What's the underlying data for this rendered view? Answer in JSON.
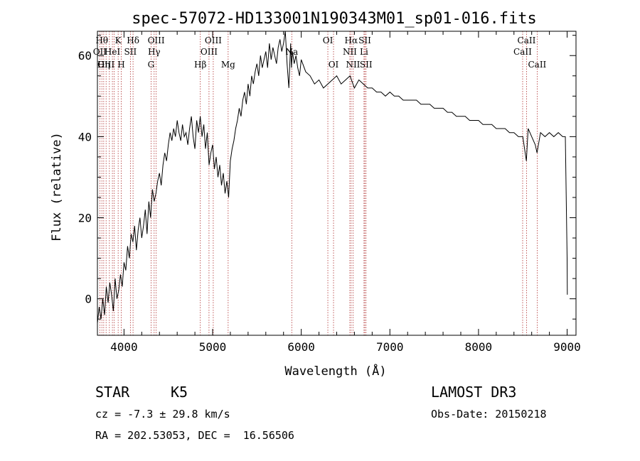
{
  "chart_data": {
    "type": "line",
    "title": "spec-57072-HD133001N190343M01_sp01-016.fits",
    "xlabel": "Wavelength (Å)",
    "ylabel": "Flux (relative)",
    "xlim": [
      3700,
      9100
    ],
    "ylim": [
      -9,
      66
    ],
    "xticks": [
      4000,
      5000,
      6000,
      7000,
      8000,
      9000
    ],
    "yticks": [
      0,
      20,
      40,
      60
    ],
    "grid": false,
    "series": [
      {
        "x": [
          3700,
          3720,
          3740,
          3760,
          3780,
          3800,
          3820,
          3840,
          3860,
          3880,
          3900,
          3920,
          3940,
          3960,
          3980,
          4000,
          4020,
          4040,
          4060,
          4080,
          4100,
          4120,
          4140,
          4160,
          4180,
          4200,
          4220,
          4240,
          4260,
          4280,
          4300,
          4320,
          4340,
          4360,
          4380,
          4400,
          4420,
          4440,
          4460,
          4480,
          4500,
          4520,
          4540,
          4560,
          4580,
          4600,
          4620,
          4640,
          4660,
          4680,
          4700,
          4720,
          4740,
          4760,
          4780,
          4800,
          4820,
          4840,
          4860,
          4880,
          4900,
          4920,
          4940,
          4960,
          4980,
          5000,
          5020,
          5040,
          5060,
          5080,
          5100,
          5120,
          5140,
          5160,
          5180,
          5200,
          5220,
          5240,
          5260,
          5280,
          5300,
          5320,
          5340,
          5360,
          5380,
          5400,
          5420,
          5440,
          5460,
          5480,
          5500,
          5520,
          5540,
          5560,
          5580,
          5600,
          5620,
          5640,
          5660,
          5680,
          5700,
          5720,
          5740,
          5760,
          5780,
          5800,
          5820,
          5840,
          5860,
          5880,
          5890,
          5900,
          5920,
          5940,
          5960,
          5980,
          6000,
          6050,
          6100,
          6150,
          6200,
          6250,
          6300,
          6350,
          6400,
          6450,
          6500,
          6550,
          6600,
          6650,
          6700,
          6750,
          6800,
          6850,
          6900,
          6950,
          7000,
          7050,
          7100,
          7150,
          7200,
          7250,
          7300,
          7350,
          7400,
          7450,
          7500,
          7550,
          7600,
          7650,
          7700,
          7750,
          7800,
          7850,
          7900,
          7950,
          8000,
          8050,
          8100,
          8150,
          8200,
          8250,
          8300,
          8350,
          8400,
          8450,
          8500,
          8540,
          8560,
          8600,
          8640,
          8660,
          8700,
          8750,
          8800,
          8850,
          8900,
          8950,
          8980,
          9000,
          9002
        ],
        "y": [
          -6,
          -2,
          -5,
          0,
          -4,
          3,
          -1,
          4,
          1,
          -3,
          5,
          0,
          2,
          6,
          3,
          9,
          7,
          13,
          10,
          16,
          14,
          18,
          12,
          17,
          20,
          15,
          18,
          22,
          16,
          24,
          20,
          27,
          24,
          26,
          29,
          31,
          28,
          33,
          36,
          34,
          38,
          41,
          39,
          42,
          40,
          44,
          41,
          39,
          43,
          40,
          41,
          38,
          42,
          45,
          40,
          37,
          44,
          41,
          45,
          40,
          43,
          37,
          41,
          33,
          36,
          38,
          32,
          35,
          30,
          33,
          28,
          31,
          26,
          29,
          25,
          34,
          37,
          39,
          42,
          44,
          47,
          45,
          49,
          51,
          48,
          53,
          50,
          55,
          53,
          56,
          58,
          55,
          60,
          57,
          59,
          61,
          57,
          63,
          59,
          62,
          60,
          58,
          62,
          64,
          61,
          63,
          66,
          58,
          52,
          63,
          57,
          61,
          58,
          60,
          57,
          55,
          59,
          56,
          55,
          53,
          54,
          52,
          53,
          54,
          55,
          53,
          54,
          55,
          52,
          54,
          53,
          52,
          52,
          51,
          51,
          50,
          51,
          50,
          50,
          49,
          49,
          49,
          49,
          48,
          48,
          48,
          47,
          47,
          47,
          46,
          46,
          45,
          45,
          45,
          44,
          44,
          44,
          43,
          43,
          43,
          42,
          42,
          42,
          41,
          41,
          40,
          40,
          34,
          42,
          40,
          38,
          36,
          41,
          40,
          41,
          40,
          41,
          40,
          40,
          10,
          1
        ]
      }
    ],
    "lines": [
      {
        "x": 3727,
        "label": "OII",
        "row": 1
      },
      {
        "x": 3750,
        "label": "Hθ",
        "row": 0
      },
      {
        "x": 3771,
        "label": "Hη",
        "row": 2
      },
      {
        "x": 3798,
        "label": "OIII",
        "row": 2
      },
      {
        "x": 3835,
        "label": "",
        "row": 0
      },
      {
        "x": 3869,
        "label": "HeI",
        "row": 1
      },
      {
        "x": 3889,
        "label": "",
        "row": 0
      },
      {
        "x": 3934,
        "label": "K",
        "row": 0
      },
      {
        "x": 3969,
        "label": "H",
        "row": 2
      },
      {
        "x": 4072,
        "label": "SII",
        "row": 1
      },
      {
        "x": 4102,
        "label": "Hδ",
        "row": 0
      },
      {
        "x": 4305,
        "label": "G",
        "row": 2
      },
      {
        "x": 4340,
        "label": "Hγ",
        "row": 1
      },
      {
        "x": 4363,
        "label": "OIII",
        "row": 0
      },
      {
        "x": 4861,
        "label": "Hβ",
        "row": 2
      },
      {
        "x": 4959,
        "label": "OIII",
        "row": 1
      },
      {
        "x": 5007,
        "label": "OIII",
        "row": 0
      },
      {
        "x": 5175,
        "label": "Mg",
        "row": 2
      },
      {
        "x": 5893,
        "label": "Na",
        "row": 1
      },
      {
        "x": 6300,
        "label": "OI",
        "row": 0
      },
      {
        "x": 6364,
        "label": "OI",
        "row": 2
      },
      {
        "x": 6548,
        "label": "NII",
        "row": 1
      },
      {
        "x": 6563,
        "label": "Hα",
        "row": 0
      },
      {
        "x": 6584,
        "label": "NII",
        "row": 2
      },
      {
        "x": 6708,
        "label": "Li",
        "row": 1
      },
      {
        "x": 6717,
        "label": "SII",
        "row": 0
      },
      {
        "x": 6731,
        "label": "SII",
        "row": 2
      },
      {
        "x": 8498,
        "label": "CaII",
        "row": 1
      },
      {
        "x": 8542,
        "label": "CaII",
        "row": 0
      },
      {
        "x": 8662,
        "label": "CaII",
        "row": 2
      }
    ]
  },
  "info": {
    "class_label": "STAR",
    "subclass_label": "K5",
    "survey": "LAMOST DR3",
    "cz": "cz = -7.3 ± 29.8 km/s",
    "obs_date": "Obs-Date: 20150218",
    "coords": "RA = 202.53053, DEC =  16.56506"
  }
}
